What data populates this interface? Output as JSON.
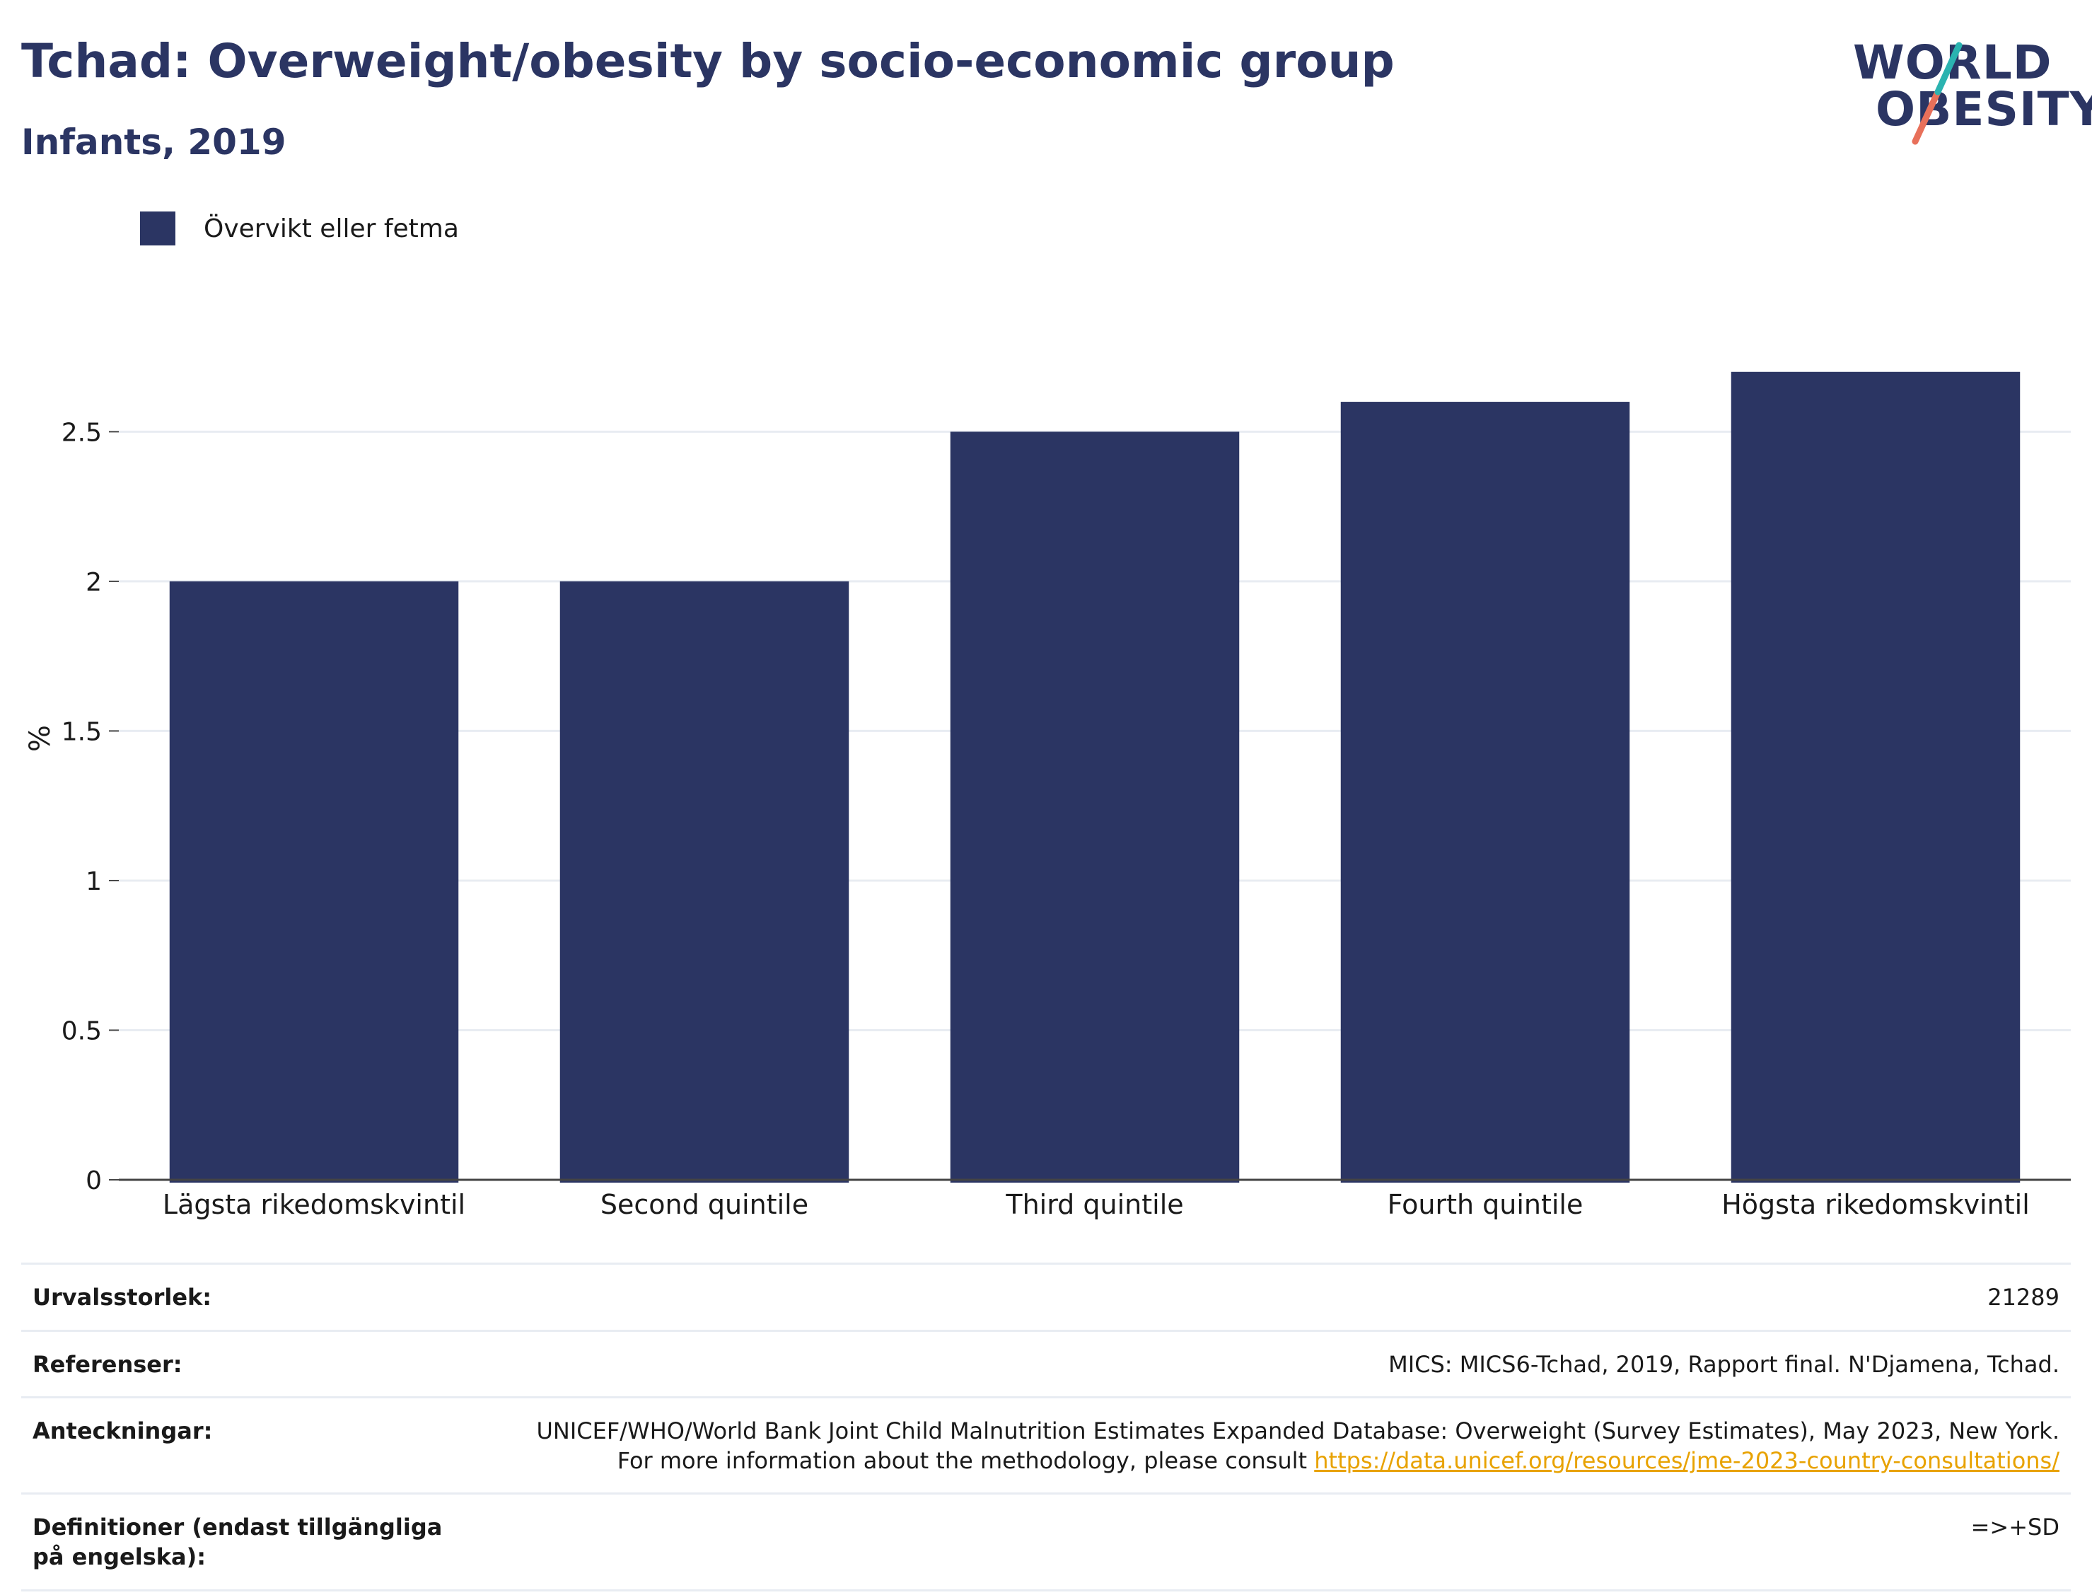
{
  "header": {
    "title": "Tchad: Overweight/obesity by socio-economic group",
    "subtitle": "Infants, 2019"
  },
  "logo": {
    "line1": "WORLD",
    "line2": "OBESITY"
  },
  "colors": {
    "bar": "#2b3563",
    "title": "#2b3563",
    "grid": "#e8ecf2",
    "link": "#e8a200",
    "logo_teal": "#2bb3b0",
    "logo_coral": "#e8705a"
  },
  "chart_data": {
    "type": "bar",
    "categories": [
      "Lägsta rikedomskvintil",
      "Second quintile",
      "Third quintile",
      "Fourth quintile",
      "Högsta rikedomskvintil"
    ],
    "series": [
      {
        "name": "Övervikt eller fetma",
        "values": [
          2.0,
          2.0,
          2.5,
          2.6,
          2.7
        ]
      }
    ],
    "ylabel": "%",
    "yticks": [
      0,
      0.5,
      1,
      1.5,
      2,
      2.5
    ],
    "ytick_labels": [
      "0",
      "0.5",
      "1",
      "1.5",
      "2",
      "2.5"
    ],
    "ylim": [
      0,
      2.95
    ],
    "grid": true,
    "legend": "top-left"
  },
  "footer": [
    {
      "label": "Urvalsstorlek:",
      "value": "21289"
    },
    {
      "label": "Referenser:",
      "value": "MICS: MICS6-Tchad, 2019, Rapport final. N'Djamena, Tchad."
    },
    {
      "label": "Anteckningar:",
      "value": "UNICEF/WHO/World Bank Joint Child Malnutrition Estimates Expanded Database: Overweight (Survey Estimates), May 2023, New York. For more information about the methodology, please consult",
      "link": "https://data.unicef.org/resources/jme-2023-country-consultations/"
    },
    {
      "label": "Definitioner (endast tillgängliga på engelska):",
      "value": "=>+SD"
    }
  ]
}
